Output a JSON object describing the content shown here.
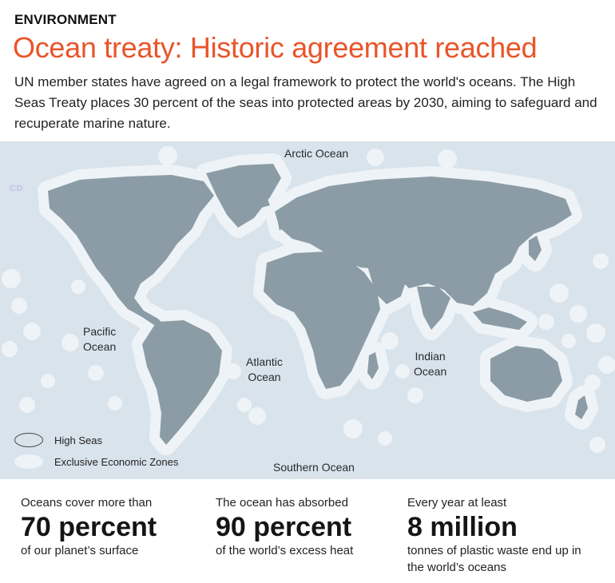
{
  "header": {
    "kicker": "ENVIRONMENT",
    "headline": "Ocean treaty: Historic agreement reached",
    "headline_color": "#e8552a",
    "intro": "UN member states have agreed on a legal framework to protect the world's oceans. The High Seas Treaty places 30 percent of the seas into protected areas by 2030, aiming to safeguard and recuperate marine nature."
  },
  "map": {
    "ocean_color": "#d8e3ec",
    "eez_color": "#eef3f7",
    "land_color": "#8b9ca6",
    "watermark": "CD",
    "labels": {
      "arctic": "Arctic Ocean",
      "pacific_1": "Pacific",
      "pacific_2": "Ocean",
      "atlantic_1": "Atlantic",
      "atlantic_2": "Ocean",
      "indian_1": "Indian",
      "indian_2": "Ocean",
      "southern": "Southern Ocean"
    },
    "legend": {
      "high_seas": "High Seas",
      "eez": "Exclusive Economic Zones"
    }
  },
  "stats": [
    {
      "lead": "Oceans cover more than",
      "big": "70 percent",
      "tail": "of our planet’s surface"
    },
    {
      "lead": "The ocean has absorbed",
      "big": "90 percent",
      "tail": "of the world’s excess heat"
    },
    {
      "lead": "Every year at least",
      "big": "8 million",
      "tail": "tonnes of plastic waste end up in the world’s oceans"
    }
  ]
}
